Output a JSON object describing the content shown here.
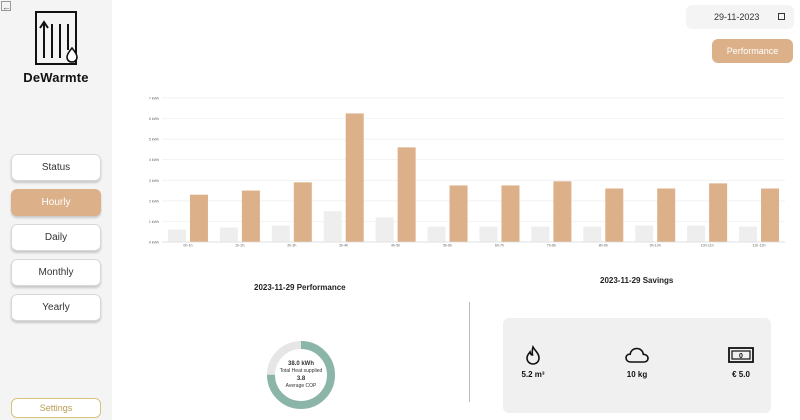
{
  "brand": "DeWarmte",
  "nav": {
    "status": "Status",
    "hourly": "Hourly",
    "daily": "Daily",
    "monthly": "Monthly",
    "yearly": "Yearly",
    "settings": "Settings",
    "active": "hourly"
  },
  "header": {
    "date": "29-11-2023",
    "performance_button": "Performance"
  },
  "chart_data": {
    "type": "bar",
    "categories": [
      "0h-1h",
      "1h-2h",
      "2h-3h",
      "3h-4h",
      "4h-5h",
      "5h-6h",
      "6h-7h",
      "7h-8h",
      "8h-9h",
      "9h-10h",
      "10h-11h",
      "11h-12h"
    ],
    "y_ticks": [
      "0 kWh",
      "1 kWh",
      "2 kWh",
      "3 kWh",
      "4 kWh",
      "5 kWh",
      "6 kWh",
      "7 kWh"
    ],
    "ylim": [
      0,
      7
    ],
    "grid": true,
    "series": [
      {
        "values": [
          0.6,
          0.7,
          0.8,
          1.5,
          1.2,
          0.75,
          0.75,
          0.75,
          0.75,
          0.8,
          0.8,
          0.75
        ]
      },
      {
        "values": [
          2.3,
          2.5,
          2.9,
          6.25,
          4.6,
          2.75,
          2.75,
          2.95,
          2.6,
          2.6,
          2.85,
          2.6
        ]
      }
    ],
    "colors": [
      "#eeeeee",
      "#dcb088"
    ]
  },
  "performance": {
    "title": "2023-11-29 Performance",
    "heat": "38.0 kWh",
    "heat_label": "Total Heat supplied",
    "cop": "3.8",
    "cop_label": "Average COP",
    "ring_fraction": 0.75,
    "ring_color": "#8bb5a8"
  },
  "savings": {
    "title": "2023-11-29 Savings",
    "gas": "5.2 m³",
    "co2": "10 kg",
    "money": "€ 5.0"
  }
}
